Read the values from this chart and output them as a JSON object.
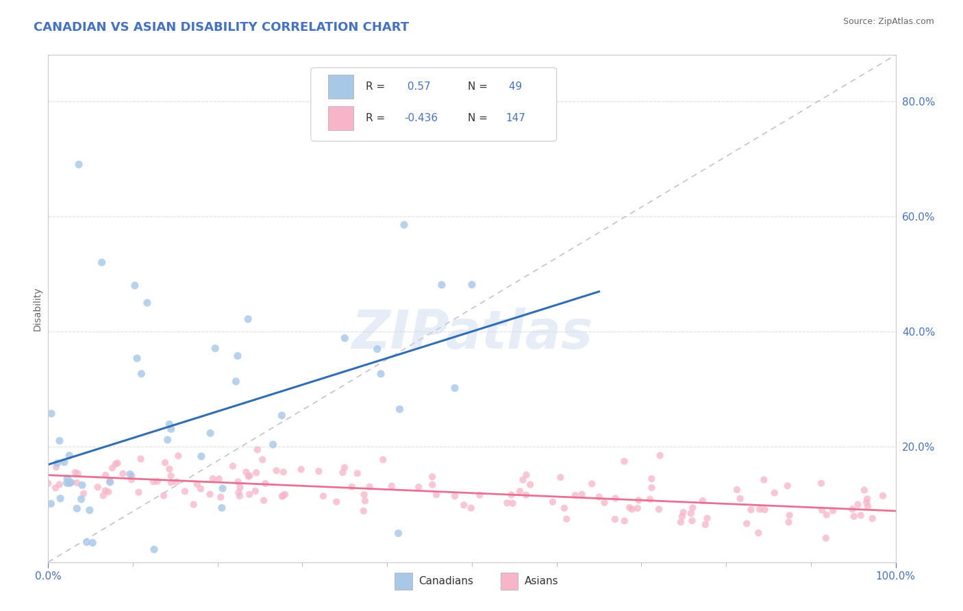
{
  "title": "CANADIAN VS ASIAN DISABILITY CORRELATION CHART",
  "source": "Source: ZipAtlas.com",
  "ylabel": "Disability",
  "canadians_color": "#A8C8E8",
  "canadians_line_color": "#2F6DB5",
  "asians_color": "#F8B4C8",
  "asians_line_color": "#E87090",
  "dashed_line_color": "#AAAAAA",
  "r_canadian": 0.57,
  "n_canadian": 49,
  "r_asian": -0.436,
  "n_asian": 147,
  "watermark": "ZIPatlas",
  "title_color": "#4472C4",
  "background_color": "#FFFFFF",
  "grid_color": "#E0E0E0",
  "ytick_labels": [
    "20.0%",
    "40.0%",
    "60.0%",
    "80.0%"
  ],
  "ytick_values": [
    0.2,
    0.4,
    0.6,
    0.8
  ],
  "ylim": [
    0.0,
    0.88
  ],
  "xlim": [
    0.0,
    1.0
  ]
}
